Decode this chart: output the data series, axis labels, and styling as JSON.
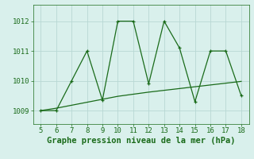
{
  "x_trend": [
    5,
    6,
    7,
    8,
    9,
    10,
    11,
    12,
    13,
    14,
    15,
    16,
    17,
    18
  ],
  "y_trend": [
    1009.0,
    1009.08,
    1009.18,
    1009.28,
    1009.38,
    1009.48,
    1009.55,
    1009.62,
    1009.68,
    1009.74,
    1009.8,
    1009.86,
    1009.92,
    1009.98
  ],
  "x_pts": [
    5,
    6,
    7,
    8,
    9,
    10,
    11,
    12,
    13,
    14,
    15,
    16,
    17,
    18
  ],
  "y_pts": [
    1009.0,
    1009.0,
    1010.0,
    1011.0,
    1009.35,
    1012.0,
    1012.0,
    1009.9,
    1012.0,
    1011.1,
    1009.3,
    1011.0,
    1011.0,
    1009.5
  ],
  "line_color": "#1a6b1a",
  "bg_color": "#d9f0ec",
  "grid_color": "#b8d8d4",
  "xlabel": "Graphe pression niveau de la mer (hPa)",
  "yticks": [
    1009,
    1010,
    1011,
    1012
  ],
  "xticks": [
    5,
    6,
    7,
    8,
    9,
    10,
    11,
    12,
    13,
    14,
    15,
    16,
    17,
    18
  ],
  "ylim": [
    1008.55,
    1012.55
  ],
  "xlim": [
    4.5,
    18.5
  ],
  "xlabel_fontsize": 7.5,
  "tick_fontsize": 6.5
}
